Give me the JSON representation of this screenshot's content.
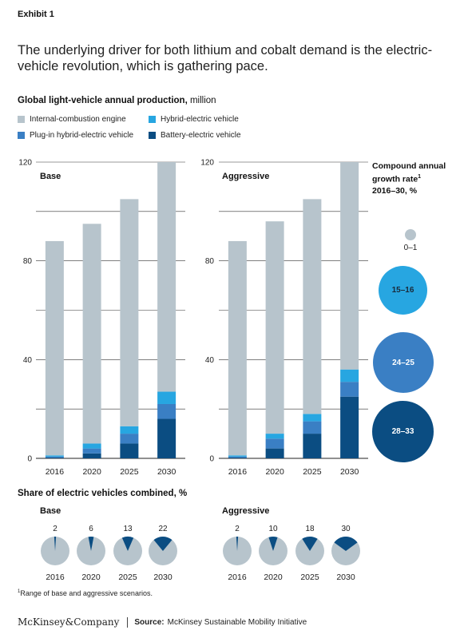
{
  "exhibit": "Exhibit 1",
  "headline": "The underlying driver for both lithium and cobalt demand is the electric-vehicle revolution, which is gathering pace.",
  "chart_title": "Global light-vehicle annual production,",
  "chart_unit": "million",
  "legend": [
    {
      "label": "Internal-combustion engine",
      "color": "#b7c4cc"
    },
    {
      "label": "Hybrid-electric vehicle",
      "color": "#27a6e1"
    },
    {
      "label": "Plug-in hybrid-electric vehicle",
      "color": "#3a7fc4"
    },
    {
      "label": "Battery-electric vehicle",
      "color": "#0b4d82"
    }
  ],
  "chart_data": [
    {
      "type": "bar",
      "stacked": true,
      "panel": "Base",
      "categories": [
        "2016",
        "2020",
        "2025",
        "2030"
      ],
      "ylim": [
        0,
        120
      ],
      "yticks": [
        0,
        40,
        80,
        120
      ],
      "grid": true,
      "series": [
        {
          "name": "Battery-electric vehicle",
          "values": [
            0.3,
            2,
            6,
            16
          ]
        },
        {
          "name": "Plug-in hybrid-electric vehicle",
          "values": [
            0.4,
            2,
            4,
            6
          ]
        },
        {
          "name": "Hybrid-electric vehicle",
          "values": [
            0.5,
            2,
            3,
            5
          ]
        },
        {
          "name": "Internal-combustion engine",
          "values": [
            86.8,
            89,
            92,
            93
          ]
        }
      ]
    },
    {
      "type": "bar",
      "stacked": true,
      "panel": "Aggressive",
      "categories": [
        "2016",
        "2020",
        "2025",
        "2030"
      ],
      "ylim": [
        0,
        120
      ],
      "yticks": [
        0,
        40,
        80,
        120
      ],
      "grid": true,
      "series": [
        {
          "name": "Battery-electric vehicle",
          "values": [
            0.3,
            4,
            10,
            25
          ]
        },
        {
          "name": "Plug-in hybrid-electric vehicle",
          "values": [
            0.4,
            4,
            5,
            6
          ]
        },
        {
          "name": "Hybrid-electric vehicle",
          "values": [
            0.5,
            2,
            3,
            5
          ]
        },
        {
          "name": "Internal-combustion engine",
          "values": [
            86.8,
            86,
            87,
            84
          ]
        }
      ]
    },
    {
      "type": "pie",
      "panel": "Base",
      "categories": [
        "2016",
        "2020",
        "2025",
        "2030"
      ],
      "values": [
        2,
        6,
        13,
        22
      ]
    },
    {
      "type": "pie",
      "panel": "Aggressive",
      "categories": [
        "2016",
        "2020",
        "2025",
        "2030"
      ],
      "values": [
        2,
        10,
        18,
        30
      ]
    }
  ],
  "cagr": {
    "title_line1": "Compound annual",
    "title_line2": "growth rate",
    "title_sup": "1",
    "title_line3": "2016–30, %",
    "bubbles": [
      {
        "label": "0–1",
        "color": "#b7c4cc"
      },
      {
        "label": "15–16",
        "color": "#27a6e1"
      },
      {
        "label": "24–25",
        "color": "#3a7fc4"
      },
      {
        "label": "28–33",
        "color": "#0b4d82"
      }
    ]
  },
  "share_title": "Share of electric vehicles combined, %",
  "footnote_sup": "1",
  "footnote": "Range of base and aggressive scenarios.",
  "footer": {
    "logo": "McKinsey&Company",
    "source_label": "Source:",
    "source": "McKinsey Sustainable Mobility Initiative"
  }
}
